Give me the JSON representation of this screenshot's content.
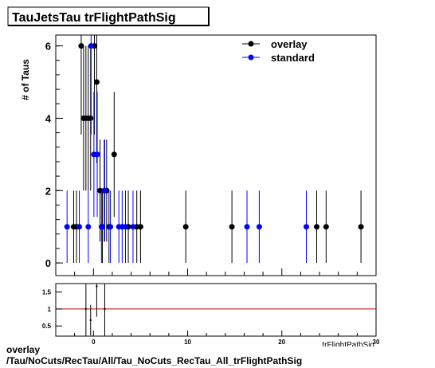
{
  "chart_data": [
    {
      "type": "scatter",
      "title": "TauJetsTau trFlightPathSig",
      "ylabel": "# of Taus",
      "xlabel": "trFlightPathSig",
      "xlim": [
        -4,
        30
      ],
      "ylim": [
        -0.35,
        6.3
      ],
      "yticks": [
        0,
        2,
        4,
        6
      ],
      "legend": "top-right",
      "series": [
        {
          "name": "overlay",
          "color": "#000000",
          "points": [
            {
              "x": -2.1,
              "y": 1,
              "err": 1
            },
            {
              "x": -1.8,
              "y": 1,
              "err": 1
            },
            {
              "x": -1.3,
              "y": 6,
              "err": 2.45
            },
            {
              "x": -1.05,
              "y": 4,
              "err": 2
            },
            {
              "x": -0.8,
              "y": 4,
              "err": 2
            },
            {
              "x": -0.55,
              "y": 4,
              "err": 2
            },
            {
              "x": -0.3,
              "y": 4,
              "err": 2
            },
            {
              "x": 0.1,
              "y": 6,
              "err": 2.45
            },
            {
              "x": 0.35,
              "y": 5,
              "err": 2.24
            },
            {
              "x": 0.7,
              "y": 2,
              "err": 1.41
            },
            {
              "x": 0.95,
              "y": 1,
              "err": 1
            },
            {
              "x": 1.15,
              "y": 2,
              "err": 1.41
            },
            {
              "x": 1.4,
              "y": 2,
              "err": 1.41
            },
            {
              "x": 1.65,
              "y": 1,
              "err": 1
            },
            {
              "x": 2.2,
              "y": 3,
              "err": 1.73
            },
            {
              "x": 3.7,
              "y": 1,
              "err": 1
            },
            {
              "x": 4.6,
              "y": 1,
              "err": 1
            },
            {
              "x": 5.0,
              "y": 1,
              "err": 1
            },
            {
              "x": 9.8,
              "y": 1,
              "err": 1
            },
            {
              "x": 14.7,
              "y": 1,
              "err": 1
            },
            {
              "x": 23.7,
              "y": 1,
              "err": 1
            },
            {
              "x": 24.7,
              "y": 1,
              "err": 1
            },
            {
              "x": 28.4,
              "y": 1,
              "err": 1
            }
          ]
        },
        {
          "name": "standard",
          "color": "#0000ff",
          "points": [
            {
              "x": -2.8,
              "y": 1,
              "err": 1
            },
            {
              "x": -1.5,
              "y": 1,
              "err": 1
            },
            {
              "x": -0.55,
              "y": 1,
              "err": 1
            },
            {
              "x": -0.25,
              "y": 6,
              "err": 2.45
            },
            {
              "x": 0.05,
              "y": 3,
              "err": 1.73
            },
            {
              "x": 0.4,
              "y": 3,
              "err": 1.73
            },
            {
              "x": 0.85,
              "y": 1,
              "err": 1
            },
            {
              "x": 1.2,
              "y": 2,
              "err": 1.41
            },
            {
              "x": 1.8,
              "y": 1,
              "err": 1
            },
            {
              "x": 2.7,
              "y": 1,
              "err": 1
            },
            {
              "x": 3.05,
              "y": 1,
              "err": 1
            },
            {
              "x": 3.4,
              "y": 1,
              "err": 1
            },
            {
              "x": 4.2,
              "y": 1,
              "err": 1
            },
            {
              "x": 16.3,
              "y": 1,
              "err": 1
            },
            {
              "x": 17.6,
              "y": 1,
              "err": 1
            },
            {
              "x": 22.6,
              "y": 1,
              "err": 1
            }
          ]
        }
      ]
    },
    {
      "type": "scatter",
      "xlim": [
        -4,
        30
      ],
      "ylim": [
        0.2,
        1.75
      ],
      "yticks": [
        0.5,
        1,
        1.5
      ],
      "xticks": [
        0,
        10,
        20,
        30
      ],
      "reference_line": 1,
      "reference_color": "#cc0000",
      "points": [
        {
          "x": -0.8,
          "y": 1.0,
          "err": 0.9
        },
        {
          "x": -0.3,
          "y": 0.67,
          "err": 0.45
        },
        {
          "x": 0.35,
          "y": 1.67,
          "err": 0.9
        },
        {
          "x": 1.2,
          "y": 1.0,
          "err": 1.0
        }
      ]
    }
  ],
  "footer": {
    "line1": "overlay",
    "line2": "/Tau/NoCuts/RecTau/All/Tau_NoCuts_RecTau_All_trFlightPathSig"
  }
}
